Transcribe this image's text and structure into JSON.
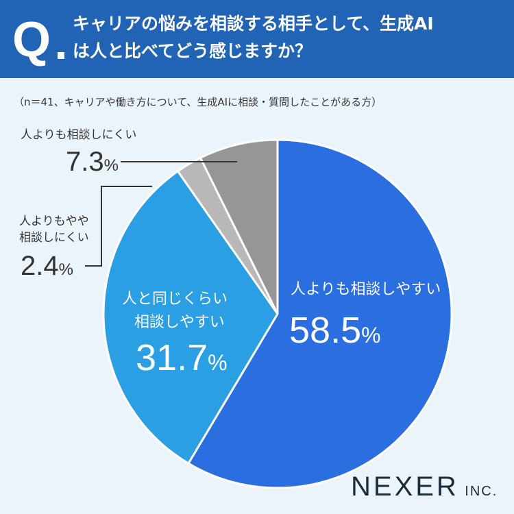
{
  "header": {
    "q_mark": "Q",
    "question_line1": "キャリアの悩みを相談する相手として、生成AI",
    "question_line2": "は人と比べてどう感じますか？"
  },
  "note": "（n＝41、キャリアや働き方について、生成AIに相談・質問したことがある方）",
  "brand": {
    "name": "NEXER",
    "suffix": "INC."
  },
  "colors": {
    "header_bg": "#2163b4",
    "background": "#ecf4fb",
    "slice_1": "#2a6ee0",
    "slice_2": "#2b9fe4",
    "slice_3": "#b8b8b8",
    "slice_4": "#969696"
  },
  "chart_data": {
    "type": "pie",
    "slices": [
      {
        "label": "人よりも相談しやすい",
        "label_lines": [
          "人よりも相談しやすい"
        ],
        "value": 58.5,
        "display": "58.5",
        "color": "#2a6ee0"
      },
      {
        "label": "人と同じくらい相談しやすい",
        "label_lines": [
          "人と同じくらい",
          "相談しやすい"
        ],
        "value": 31.7,
        "display": "31.7",
        "color": "#2b9fe4"
      },
      {
        "label": "人よりもやや相談しにくい",
        "label_lines": [
          "人よりもやや",
          "相談しにくい"
        ],
        "value": 2.4,
        "display": "2.4",
        "color": "#b8b8b8"
      },
      {
        "label": "人よりも相談しにくい",
        "label_lines": [
          "人よりも相談しにくい"
        ],
        "value": 7.3,
        "display": "7.3",
        "color": "#969696"
      }
    ],
    "unit": "%",
    "start": "12 o'clock",
    "direction": "clockwise"
  }
}
